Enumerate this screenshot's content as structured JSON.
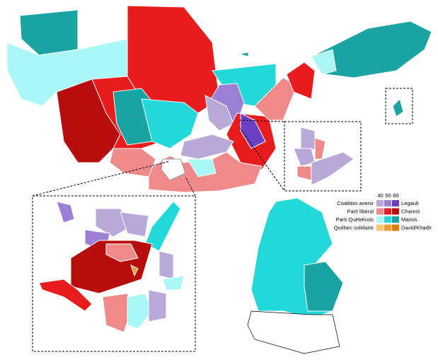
{
  "legend": {
    "thresholds": [
      40,
      50,
      60
    ],
    "parties": [
      {
        "party": "Coalition avenir",
        "leader": "Legault",
        "colors": [
          "#b8a9d9",
          "#9c7fd6",
          "#6a3fc4"
        ]
      },
      {
        "party": "Parti libéral",
        "leader": "Charest",
        "colors": [
          "#f08a8a",
          "#e81c1c",
          "#b80d0d"
        ]
      },
      {
        "party": "Parti Québécois",
        "leader": "Marois",
        "colors": [
          "#aaf7f7",
          "#22d8d8",
          "#1aa3a3"
        ]
      },
      {
        "party": "Québec solidaire",
        "leader": "David/Khadir",
        "colors": [
          "#f8c47a",
          "#f59b2a",
          "#e07a10"
        ]
      }
    ]
  }
}
